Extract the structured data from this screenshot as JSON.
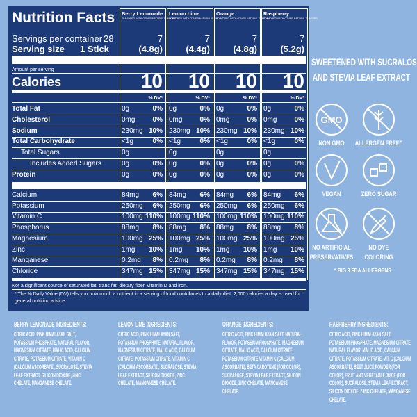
{
  "panel": {
    "title": "Nutrition Facts",
    "servings_label": "Servings per container",
    "servings_count": "28",
    "serving_size_label": "Serving size",
    "serving_size_unit": "1 Stick",
    "amount_label": "Amount per serving",
    "calories_label": "Calories",
    "flavors": [
      {
        "name": "Berry Lemonade",
        "note": "FLAVORED WITH OTHER NATURAL FLAVORS",
        "servings": "7",
        "size": "(4.8g)",
        "calories": "10",
        "dv_header": "% DV*"
      },
      {
        "name": "Lemon Lime",
        "note": "FLAVORED WITH OTHER NATURAL FLAVORS",
        "servings": "7",
        "size": "(4.4g)",
        "calories": "10",
        "dv_header": "% DV*"
      },
      {
        "name": "Orange",
        "note": "FLAVORED WITH OTHER NATURAL FLAVORS",
        "servings": "7",
        "size": "(4.8g)",
        "calories": "10",
        "dv_header": "% DV*"
      },
      {
        "name": "Raspberry",
        "note": "FLAVORED WITH OTHER NATURAL FLAVORS",
        "servings": "7",
        "size": "(5.2g)",
        "calories": "10",
        "dv_header": "% DV*"
      }
    ],
    "nutrients": [
      {
        "label": "Total Fat",
        "bold": true,
        "indent": 0,
        "amounts": [
          "0g",
          "0g",
          "0g",
          "0g"
        ],
        "dv": [
          "0%",
          "0%",
          "0%",
          "0%"
        ]
      },
      {
        "label": "Cholesterol",
        "bold": true,
        "indent": 0,
        "amounts": [
          "0mg",
          "0mg",
          "0mg",
          "0mg"
        ],
        "dv": [
          "0%",
          "0%",
          "0%",
          "0%"
        ]
      },
      {
        "label": "Sodium",
        "bold": true,
        "indent": 0,
        "amounts": [
          "230mg",
          "230mg",
          "230mg",
          "230mg"
        ],
        "dv": [
          "10%",
          "10%",
          "10%",
          "10%"
        ]
      },
      {
        "label": "Total Carbohydrate",
        "bold": true,
        "indent": 0,
        "amounts": [
          "<1g",
          "<1g",
          "<1g",
          "<1g"
        ],
        "dv": [
          "0%",
          "0%",
          "0%",
          "0%"
        ]
      },
      {
        "label": "Total Sugars",
        "bold": false,
        "indent": 1,
        "amounts": [
          "0g",
          "0g",
          "0g",
          "0g"
        ],
        "dv": [
          null,
          null,
          null,
          null
        ]
      },
      {
        "label": "Includes Added Sugars",
        "bold": false,
        "indent": 2,
        "amounts": [
          "0g",
          "0g",
          "0g",
          "0g"
        ],
        "dv": [
          "0%",
          "0%",
          "0%",
          "0%"
        ]
      },
      {
        "label": "Protein",
        "bold": true,
        "indent": 0,
        "amounts": [
          "0g",
          "0g",
          "0g",
          "0g"
        ],
        "dv": [
          "0%",
          "0%",
          "0%",
          "0%"
        ]
      }
    ],
    "micronutrients": [
      {
        "label": "Calcium",
        "amounts": [
          "84mg",
          "84mg",
          "84mg",
          "84mg"
        ],
        "dv": [
          "6%",
          "6%",
          "6%",
          "6%"
        ]
      },
      {
        "label": "Potassium",
        "amounts": [
          "250mg",
          "250mg",
          "250mg",
          "250mg"
        ],
        "dv": [
          "6%",
          "6%",
          "6%",
          "6%"
        ]
      },
      {
        "label": "Vitamin C",
        "amounts": [
          "100mg",
          "100mg",
          "100mg",
          "100mg"
        ],
        "dv": [
          "110%",
          "110%",
          "110%",
          "110%"
        ]
      },
      {
        "label": "Phosphorus",
        "amounts": [
          "88mg",
          "88mg",
          "88mg",
          "88mg"
        ],
        "dv": [
          "8%",
          "8%",
          "8%",
          "8%"
        ]
      },
      {
        "label": "Magnesium",
        "amounts": [
          "100mg",
          "100mg",
          "100mg",
          "100mg"
        ],
        "dv": [
          "25%",
          "25%",
          "25%",
          "25%"
        ]
      },
      {
        "label": "Zinc",
        "amounts": [
          "1mg",
          "1mg",
          "1mg",
          "1mg"
        ],
        "dv": [
          "10%",
          "10%",
          "10%",
          "10%"
        ]
      },
      {
        "label": "Manganese",
        "amounts": [
          "0.2mg",
          "0.2mg",
          "0.2mg",
          "0.2mg"
        ],
        "dv": [
          "8%",
          "8%",
          "8%",
          "8%"
        ]
      },
      {
        "label": "Chloride",
        "amounts": [
          "347mg",
          "347mg",
          "347mg",
          "347mg"
        ],
        "dv": [
          "15%",
          "15%",
          "15%",
          "15%"
        ]
      }
    ],
    "footnotes": [
      "Not a significant source of saturated fat, trans fat, dietary fiber, vitamin D and iron.",
      "* The % Daily Value (DV) tells you how much a nutrient in a serving of food contributes to a daily diet. 2,000 calories a day is used for general nutrition advice."
    ]
  },
  "claims": {
    "title": [
      "SWEETENED WITH SUCRALOSE",
      "AND STEVIA LEAF EXTRACT"
    ],
    "badges": [
      {
        "label": "NON GMO",
        "icon_text": "GMO"
      },
      {
        "label": "ALLERGEN FREE^"
      },
      {
        "label": "VEGAN"
      },
      {
        "label": "ZERO SUGAR"
      },
      {
        "label": "NO ARTIFICIAL PRESERVATIVES"
      },
      {
        "label": "NO DYE COLORING"
      }
    ],
    "note": "^ BIG 9 FDA ALLERGENS"
  },
  "ingredients": [
    {
      "title": "BERRY LEMONADE INGREDIENTS:",
      "text": "CITRIC ACID, PINK HIMALAYAN SALT, POTASSIUM PHOSPHATE, NATURAL FLAVOR, MAGNESIUM CITRATE, MALIC ACID, CALCIUM CITRATE, POTASSIUM CITRATE, VITAMIN C (CALCIUM ASCORBATE), SUCRALOSE, STEVIA LEAF EXTRACT, SILICON DIOXIDE, ZINC CHELATE, MANGANESE CHELATE."
    },
    {
      "title": "LEMON LIME INGREDIENTS:",
      "text": "CITRIC ACID, PINK HIMALAYAN SALT, POTASSIUM PHOSPHATE, NATURAL FLAVOR, MAGNESIUM CITRATE, MALIC ACID, CALCIUM CITRATE, POTASSIUM CITRATE, VITAMIN C (CALCIUM ASCORBATE), SUCRALOSE, STEVIA LEAF EXTRACT, SILICON DIOXIDE, ZINC CHELATE, MANGANESE CHELATE."
    },
    {
      "title": "ORANGE INGREDIENTS:",
      "text": "CITRIC ACID, PINK HIMALAYAN SALT, NATURAL FLAVOR, POTASSIUM PHOSPHATE, MAGNESIUM CITRATE, MALIC ACID, CALCIUM CITRATE, POTASSIUM CITRATE VITAMIN C (CALCIUM ASCORBATE), BETA CAROTENE (FOR COLOR), SUCRALOSE, STEVIA LEAF EXTRACT, SILICON DIOXIDE, ZINC CHELATE, MANGANESE CHELATE."
    },
    {
      "title": "RASPBERRY INGREDIENTS:",
      "text": "CITRIC ACID, PINK HIMALAYAN SALT, POTASSIUM PHOSPHATE, MAGNESIUM CITRATE, NATURAL FLAVOR, MALIC ACID, CALCIUM CITRATE, POTASSIUM CITRATE, VIT. C (CALCIUM ASCORBATE), BEET JUICE POWDER (FOR COLOR), FRUIT AND VEGETABLE JUICE (FOR COLOR), SUCRALOSE, STEVIA LEAF EXTRACT, SILICON DIOXIDE, Z INC CHELATE, MANGANESE CHELATE."
    }
  ]
}
